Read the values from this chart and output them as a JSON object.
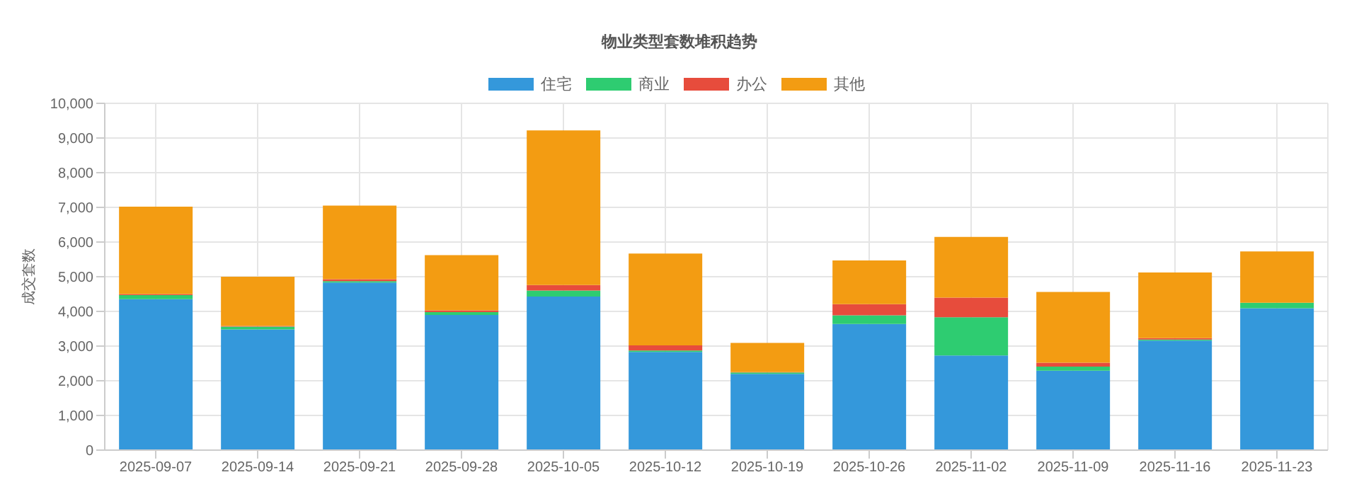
{
  "chart_data": {
    "type": "bar",
    "title": "物业类型套数堆积趋势",
    "ylabel": "成交套数",
    "categories": [
      "2025-09-07",
      "2025-09-14",
      "2025-09-21",
      "2025-09-28",
      "2025-10-05",
      "2025-10-12",
      "2025-10-19",
      "2025-10-26",
      "2025-11-02",
      "2025-11-09",
      "2025-11-16",
      "2025-11-23"
    ],
    "series": [
      {
        "name": "住宅",
        "color": "#3498db",
        "values": [
          4350,
          3480,
          4830,
          3900,
          4430,
          2830,
          2200,
          3640,
          2730,
          2290,
          3160,
          4090
        ]
      },
      {
        "name": "商业",
        "color": "#2ecc71",
        "values": [
          120,
          80,
          40,
          80,
          170,
          40,
          40,
          250,
          1100,
          120,
          30,
          160
        ]
      },
      {
        "name": "办公",
        "color": "#e74c3c",
        "values": [
          30,
          20,
          60,
          50,
          160,
          150,
          10,
          320,
          570,
          110,
          40,
          0
        ]
      },
      {
        "name": "其他",
        "color": "#f39c12",
        "values": [
          2520,
          1420,
          2120,
          1590,
          4460,
          2650,
          840,
          1260,
          1750,
          2040,
          1890,
          1480
        ]
      }
    ],
    "stacked": true,
    "ylim": [
      0,
      10000
    ],
    "yticks": [
      0,
      {
        "value": 1000,
        "label": "1,000"
      },
      {
        "value": 2000,
        "label": "2,000"
      },
      {
        "value": 3000,
        "label": "3,000"
      },
      {
        "value": 4000,
        "label": "4,000"
      },
      {
        "value": 5000,
        "label": "5,000"
      },
      {
        "value": 6000,
        "label": "6,000"
      },
      {
        "value": 7000,
        "label": "7,000"
      },
      {
        "value": 8000,
        "label": "8,000"
      },
      {
        "value": 9000,
        "label": "9,000"
      },
      {
        "value": 10000,
        "label": "10,000"
      }
    ],
    "grid": true,
    "legend": "top"
  }
}
